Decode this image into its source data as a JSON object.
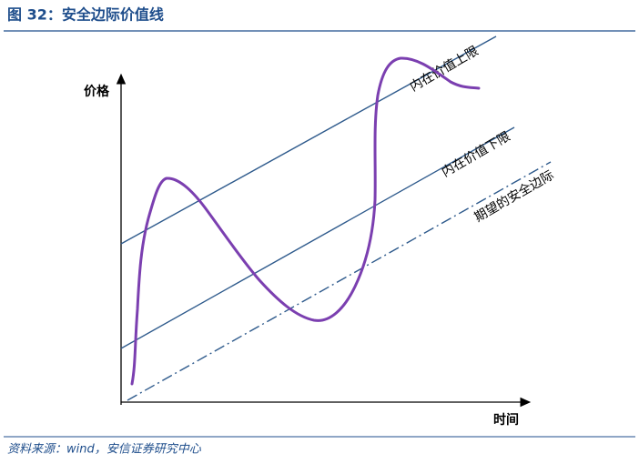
{
  "header": {
    "title": "图 32：安全边际价值线"
  },
  "axes": {
    "y_label": "价格",
    "x_label": "时间"
  },
  "lines": {
    "upper": "内在价值上限",
    "lower": "内在价值下限",
    "margin": "期望的安全边际"
  },
  "footer": {
    "source": "资料来源：wind，安信证券研究中心"
  }
}
